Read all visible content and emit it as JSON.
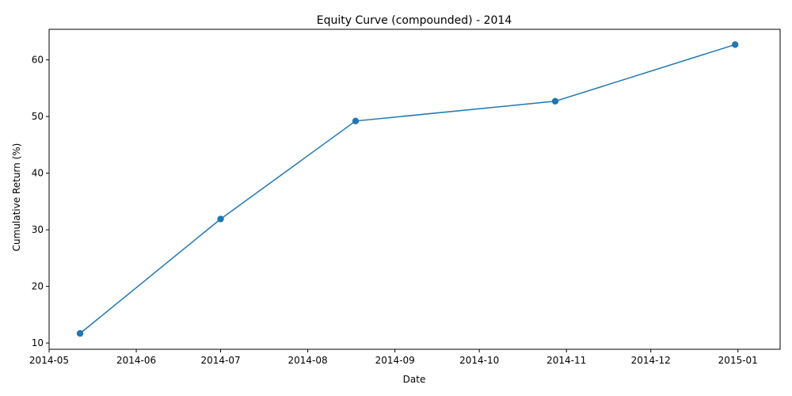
{
  "chart_data": {
    "type": "line",
    "title": "Equity Curve (compounded) - 2014",
    "xlabel": "Date",
    "ylabel": "Cumulative Return (%)",
    "x_ticks": [
      "2014-05",
      "2014-06",
      "2014-07",
      "2014-08",
      "2014-09",
      "2014-10",
      "2014-11",
      "2014-12",
      "2015-01"
    ],
    "y_ticks": [
      10,
      20,
      30,
      40,
      50,
      60
    ],
    "xlim": [
      "2014-05-01",
      "2015-01-16"
    ],
    "ylim": [
      8.9,
      65.4
    ],
    "grid": false,
    "series": [
      {
        "color": "#1f77b4",
        "marker": "circle",
        "x": [
          "2014-05-12",
          "2014-07-01",
          "2014-08-18",
          "2014-10-28",
          "2014-12-31"
        ],
        "y": [
          11.7,
          31.9,
          49.2,
          52.7,
          62.7
        ]
      }
    ]
  }
}
